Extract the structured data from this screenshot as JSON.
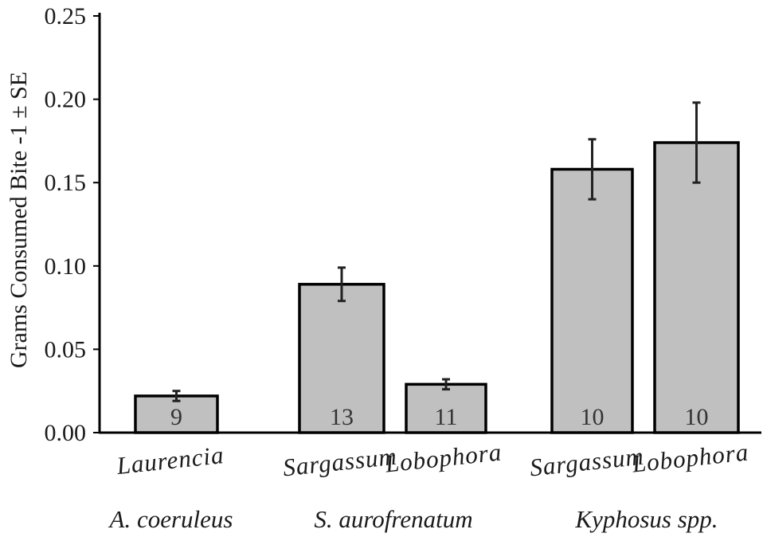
{
  "chart_data": {
    "type": "bar",
    "title": "",
    "xlabel": "",
    "ylabel": "Grams Consumed Bite -1 ± SE",
    "ylim": [
      0,
      0.25
    ],
    "yticks": [
      "0.00",
      "0.05",
      "0.10",
      "0.15",
      "0.20",
      "0.25"
    ],
    "ytick_values": [
      0,
      0.05,
      0.1,
      0.15,
      0.2,
      0.25
    ],
    "grid": false,
    "legend": "none",
    "bar_color": "#c0c0c0",
    "edge_color": "#000000",
    "bars": [
      {
        "category": "Laurencia",
        "group": "A. coeruleus",
        "value": 0.022,
        "se_low": 0.019,
        "se_high": 0.025,
        "n": "9"
      },
      {
        "category": "Sargassum",
        "group": "S. aurofrenatum",
        "value": 0.089,
        "se_low": 0.079,
        "se_high": 0.099,
        "n": "13"
      },
      {
        "category": "Lobophora",
        "group": "S. aurofrenatum",
        "value": 0.029,
        "se_low": 0.026,
        "se_high": 0.032,
        "n": "11"
      },
      {
        "category": "Sargassum",
        "group": "Kyphosus spp.",
        "value": 0.158,
        "se_low": 0.14,
        "se_high": 0.176,
        "n": "10"
      },
      {
        "category": "Lobophora",
        "group": "Kyphosus spp.",
        "value": 0.174,
        "se_low": 0.15,
        "se_high": 0.198,
        "n": "10"
      }
    ],
    "groups": [
      "A. coeruleus",
      "S. aurofrenatum",
      "Kyphosus spp."
    ]
  }
}
